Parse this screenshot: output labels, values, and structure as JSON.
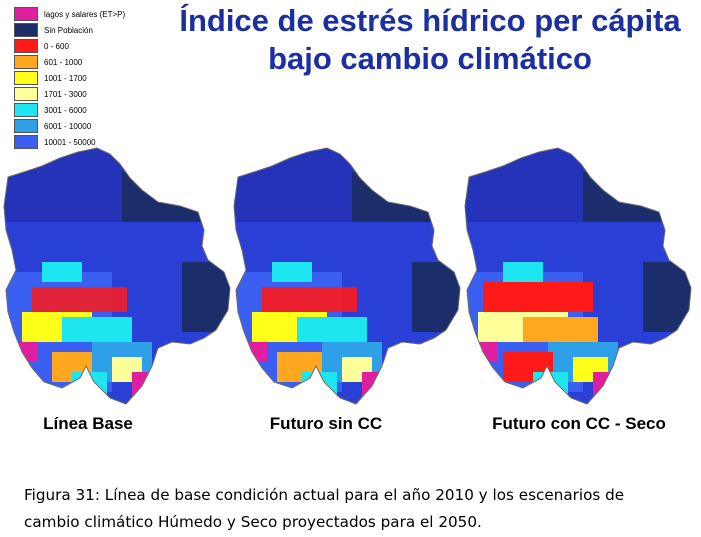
{
  "title": "Índice de estrés hídrico per cápita bajo cambio climático",
  "legend": [
    {
      "label": "lagos y salares (ET>P)",
      "color": "#e01ea0"
    },
    {
      "label": "Sin Población",
      "color": "#1c2d6b"
    },
    {
      "label": "0 - 600",
      "color": "#ff1a1a"
    },
    {
      "label": "601 - 1000",
      "color": "#ffa81f"
    },
    {
      "label": "1001 - 1700",
      "color": "#ffff1a"
    },
    {
      "label": "1701 - 3000",
      "color": "#ffff99"
    },
    {
      "label": "3001 - 6000",
      "color": "#1ee6f0"
    },
    {
      "label": "6001 - 10000",
      "color": "#2ea0e8"
    },
    {
      "label": "10001 - 50000",
      "color": "#3b5ff0"
    }
  ],
  "maps": [
    {
      "caption": "Línea Base"
    },
    {
      "caption": "Futuro sin CC"
    },
    {
      "caption": "Futuro con CC - Seco"
    }
  ],
  "figure_caption": {
    "label": "Figura 31",
    "text": ": Línea de base condición actual para el año 2010 y los escenarios de cambio climático Húmedo y Seco proyectados para el 2050."
  },
  "colors": {
    "title": "#1b2fa3",
    "north_dark": "#1c2d6b",
    "base_blue": "#2a3fd6",
    "outline": "#6b6b6b"
  }
}
